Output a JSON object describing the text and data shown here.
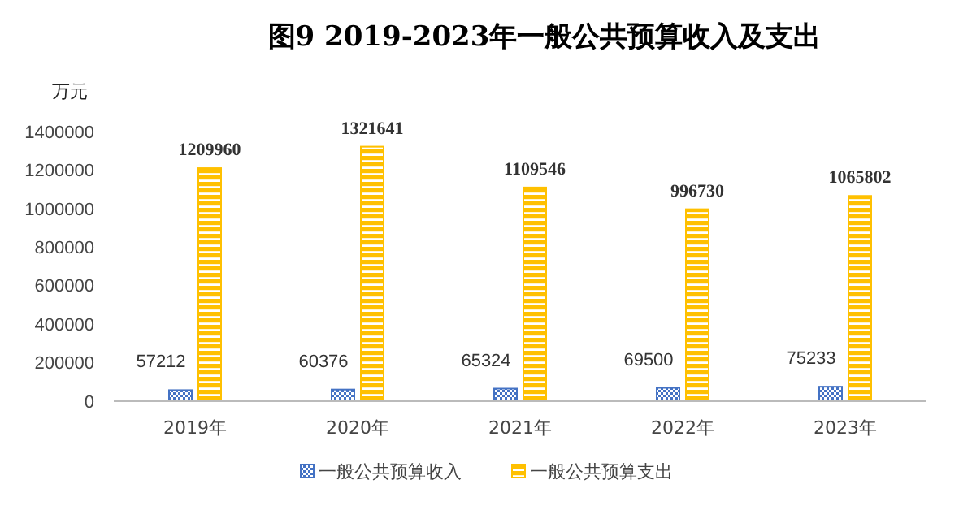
{
  "chart_data": {
    "type": "bar",
    "title": "图9 2019-2023年一般公共预算收入及支出",
    "ylabel": "万元",
    "categories": [
      "2019年",
      "2020年",
      "2021年",
      "2022年",
      "2023年"
    ],
    "series": [
      {
        "name": "一般公共预算收入",
        "color": "#4472c4",
        "values": [
          57212,
          60376,
          65324,
          69500,
          75233
        ]
      },
      {
        "name": "一般公共预算支出",
        "color": "#ffc000",
        "values": [
          1209960,
          1321641,
          1109546,
          996730,
          1065802
        ]
      }
    ],
    "ylim": [
      0,
      1400000
    ],
    "yticks": [
      0,
      200000,
      400000,
      600000,
      800000,
      1000000,
      1200000,
      1400000
    ],
    "grid": false,
    "legend": "bottom",
    "data_labels": true
  }
}
